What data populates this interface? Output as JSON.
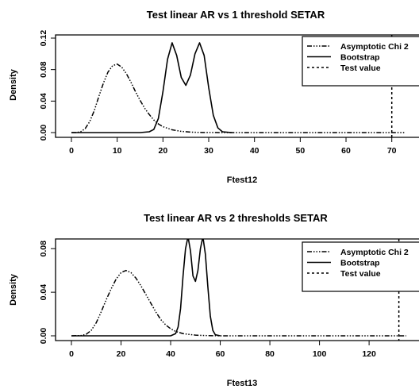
{
  "chart_data": [
    {
      "type": "line",
      "title": "Test linear AR vs 1 threshold SETAR",
      "xlabel": "Ftest12",
      "ylabel": "Density",
      "xlim": [
        0,
        73
      ],
      "ylim": [
        0,
        0.12
      ],
      "xticks": [
        "0",
        "10",
        "20",
        "30",
        "40",
        "50",
        "60",
        "70"
      ],
      "yticks": [
        "0.00",
        "0.04",
        "0.08",
        "0.12"
      ],
      "grid": false,
      "legend_position": "top-right",
      "series": [
        {
          "name": "Asymptotic Chi 2",
          "style": "dash-dot",
          "x": [
            0,
            1,
            2,
            3,
            4,
            5,
            6,
            7,
            8,
            9,
            10,
            11,
            12,
            13,
            14,
            15,
            16,
            17,
            18,
            19,
            20,
            22,
            24,
            26,
            28,
            30,
            35,
            40,
            50,
            60,
            73
          ],
          "y": [
            0.0,
            0.0,
            0.001,
            0.005,
            0.014,
            0.028,
            0.046,
            0.063,
            0.077,
            0.085,
            0.087,
            0.083,
            0.075,
            0.064,
            0.052,
            0.041,
            0.031,
            0.023,
            0.016,
            0.011,
            0.0075,
            0.0035,
            0.0015,
            0.0006,
            0.0002,
            0.0001,
            0,
            0,
            0,
            0,
            0
          ]
        },
        {
          "name": "Bootstrap",
          "style": "solid",
          "x": [
            0,
            15,
            17,
            18,
            19,
            20,
            21,
            22,
            23,
            24,
            25,
            26,
            27,
            28,
            29,
            30,
            31,
            32,
            33,
            35
          ],
          "y": [
            0,
            0,
            0.001,
            0.004,
            0.018,
            0.052,
            0.093,
            0.114,
            0.098,
            0.07,
            0.06,
            0.073,
            0.1,
            0.114,
            0.098,
            0.057,
            0.022,
            0.006,
            0.001,
            0
          ]
        },
        {
          "name": "Test value",
          "style": "dashed",
          "vertical_x": 70
        }
      ]
    },
    {
      "type": "line",
      "title": "Test linear AR vs 2 thresholds SETAR",
      "xlabel": "Ftest13",
      "ylabel": "Density",
      "xlim": [
        0,
        135
      ],
      "ylim": [
        0,
        0.086
      ],
      "xticks": [
        "0",
        "20",
        "40",
        "60",
        "80",
        "100",
        "120"
      ],
      "yticks": [
        "0.00",
        "0.04",
        "0.08"
      ],
      "grid": false,
      "legend_position": "top-right",
      "series": [
        {
          "name": "Asymptotic Chi 2",
          "style": "dash-dot",
          "x": [
            0,
            4,
            6,
            8,
            10,
            12,
            14,
            16,
            18,
            20,
            22,
            24,
            26,
            28,
            30,
            32,
            34,
            36,
            38,
            40,
            42,
            45,
            50,
            55,
            60,
            80,
            100,
            135
          ],
          "y": [
            0,
            0.0003,
            0.0015,
            0.005,
            0.012,
            0.022,
            0.033,
            0.043,
            0.052,
            0.058,
            0.06,
            0.058,
            0.053,
            0.046,
            0.038,
            0.03,
            0.022,
            0.015,
            0.01,
            0.0065,
            0.004,
            0.002,
            0.0006,
            0.0002,
            0,
            0,
            0,
            0
          ]
        },
        {
          "name": "Bootstrap",
          "style": "solid",
          "x": [
            0,
            40,
            42,
            43,
            44,
            45,
            46,
            47,
            48,
            49,
            50,
            51,
            52,
            53,
            54,
            55,
            56,
            57,
            58,
            60
          ],
          "y": [
            0,
            0,
            0.002,
            0.008,
            0.025,
            0.055,
            0.08,
            0.091,
            0.078,
            0.055,
            0.05,
            0.06,
            0.08,
            0.091,
            0.075,
            0.045,
            0.018,
            0.005,
            0.001,
            0
          ]
        },
        {
          "name": "Test value",
          "style": "dashed",
          "vertical_x": 132
        }
      ]
    }
  ]
}
